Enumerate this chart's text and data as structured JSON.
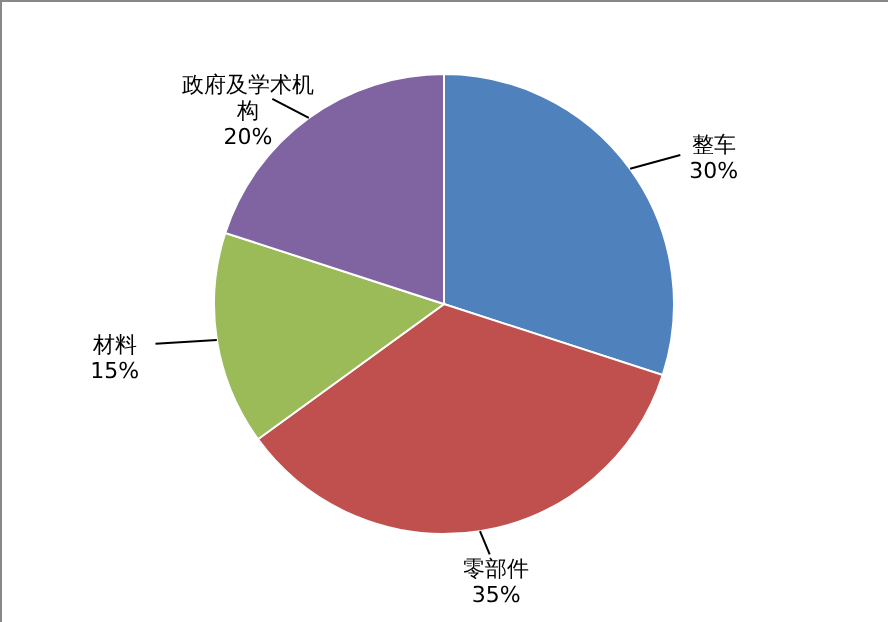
{
  "chart_data": {
    "type": "pie",
    "categories": [
      "整车",
      "零部件",
      "材料",
      "政府及学术机构"
    ],
    "values": [
      30,
      35,
      15,
      20
    ],
    "value_labels": [
      "30%",
      "35%",
      "15%",
      "20%"
    ],
    "colors": [
      "#4f81bd",
      "#c0504d",
      "#9bbb59",
      "#8064a2"
    ]
  }
}
